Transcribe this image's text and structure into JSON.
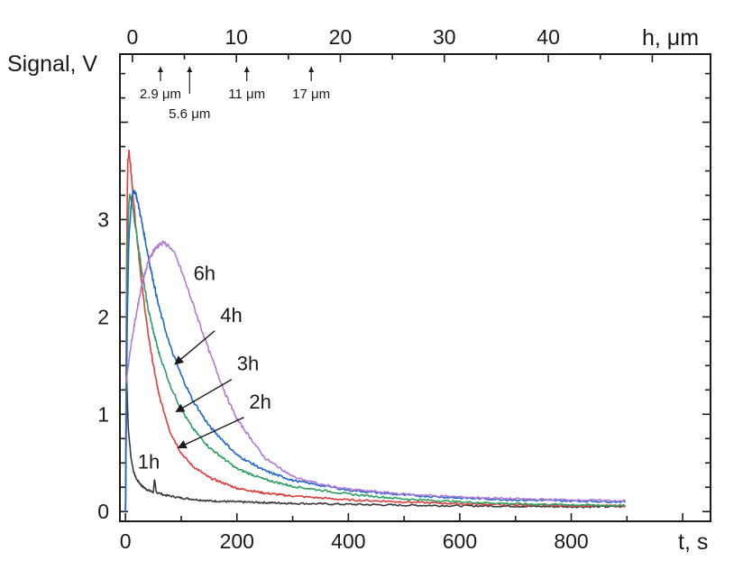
{
  "chart_data": {
    "type": "line",
    "x_axis": {
      "label": "t, s",
      "range": [
        -10,
        1050
      ],
      "ticks": [
        0,
        200,
        400,
        600,
        800
      ],
      "tick_labels": [
        "0",
        "200",
        "400",
        "600",
        "800"
      ],
      "minor_step": 100
    },
    "x2_axis": {
      "label": "h, μm",
      "range": [
        -1.2,
        55.6
      ],
      "ticks": [
        0,
        10,
        20,
        30,
        40
      ],
      "tick_labels": [
        "0",
        "10",
        "20",
        "30",
        "40"
      ],
      "minor_step": 5
    },
    "y_axis": {
      "label": "Signal, V",
      "range": [
        -0.1,
        4.7
      ],
      "ticks": [
        0,
        1,
        2,
        3
      ],
      "tick_labels": [
        "0",
        "1",
        "2",
        "3"
      ],
      "minor_step": 0.25
    },
    "depth_markers": [
      {
        "label": "2.9 μm",
        "h": 2.7,
        "tall": false
      },
      {
        "label": "5.6 μm",
        "h": 5.5,
        "tall": true
      },
      {
        "label": "11 μm",
        "h": 11.0,
        "tall": false
      },
      {
        "label": "17 μm",
        "h": 17.2,
        "tall": false
      }
    ],
    "series": [
      {
        "name": "1h",
        "color": "#3a3a3a",
        "x": [
          0,
          2,
          5,
          10,
          15,
          20,
          30,
          40,
          50,
          52,
          55,
          70,
          100,
          150,
          200,
          300,
          400,
          500,
          600,
          700,
          800,
          900
        ],
        "y": [
          0.0,
          1.4,
          0.85,
          0.55,
          0.4,
          0.33,
          0.26,
          0.22,
          0.2,
          0.33,
          0.2,
          0.17,
          0.14,
          0.11,
          0.1,
          0.085,
          0.075,
          0.065,
          0.06,
          0.055,
          0.05,
          0.05
        ]
      },
      {
        "name": "2h",
        "color": "#e03c3c",
        "x": [
          0,
          2,
          4,
          6,
          8,
          12,
          20,
          30,
          40,
          50,
          60,
          80,
          100,
          120,
          150,
          200,
          250,
          300,
          400,
          500,
          600,
          700,
          800,
          900
        ],
        "y": [
          0.0,
          2.6,
          3.6,
          3.7,
          3.62,
          3.35,
          2.85,
          2.3,
          1.85,
          1.5,
          1.2,
          0.82,
          0.6,
          0.47,
          0.35,
          0.24,
          0.19,
          0.16,
          0.12,
          0.1,
          0.08,
          0.07,
          0.06,
          0.06
        ]
      },
      {
        "name": "3h",
        "color": "#2e9e62",
        "x": [
          0,
          3,
          6,
          8,
          12,
          20,
          30,
          40,
          50,
          60,
          80,
          100,
          120,
          150,
          200,
          250,
          300,
          400,
          500,
          600,
          700,
          800,
          900
        ],
        "y": [
          0.0,
          2.6,
          3.15,
          3.25,
          3.15,
          2.85,
          2.45,
          2.1,
          1.85,
          1.63,
          1.3,
          1.05,
          0.86,
          0.66,
          0.44,
          0.33,
          0.26,
          0.18,
          0.13,
          0.1,
          0.08,
          0.07,
          0.06
        ]
      },
      {
        "name": "4h",
        "color": "#1f66cc",
        "x": [
          0,
          3,
          6,
          10,
          14,
          18,
          25,
          35,
          45,
          60,
          80,
          100,
          120,
          150,
          200,
          250,
          300,
          400,
          500,
          600,
          700,
          800,
          900
        ],
        "y": [
          0.0,
          1.9,
          2.8,
          3.15,
          3.3,
          3.28,
          3.1,
          2.8,
          2.5,
          2.1,
          1.7,
          1.4,
          1.15,
          0.88,
          0.58,
          0.42,
          0.32,
          0.22,
          0.17,
          0.14,
          0.12,
          0.11,
          0.1
        ]
      },
      {
        "name": "6h",
        "color": "#b07ad6",
        "x": [
          0,
          5,
          10,
          20,
          30,
          40,
          50,
          60,
          70,
          80,
          90,
          100,
          120,
          150,
          180,
          200,
          250,
          300,
          350,
          400,
          500,
          600,
          700,
          800,
          900
        ],
        "y": [
          1.3,
          1.5,
          1.72,
          2.05,
          2.35,
          2.55,
          2.68,
          2.74,
          2.76,
          2.72,
          2.62,
          2.48,
          2.15,
          1.65,
          1.2,
          0.95,
          0.55,
          0.36,
          0.28,
          0.23,
          0.18,
          0.15,
          0.13,
          0.12,
          0.11
        ]
      }
    ],
    "annotations": [
      {
        "text": "6h",
        "x": 122,
        "y": 2.38,
        "arrow": false
      },
      {
        "text": "4h",
        "x": 170,
        "y": 1.95,
        "arrow": true,
        "arrow_to": [
          90,
          1.52
        ]
      },
      {
        "text": "3h",
        "x": 200,
        "y": 1.45,
        "arrow": true,
        "arrow_to": [
          92,
          1.03
        ]
      },
      {
        "text": "2h",
        "x": 222,
        "y": 1.06,
        "arrow": true,
        "arrow_to": [
          96,
          0.66
        ]
      },
      {
        "text": "1h",
        "x": 22,
        "y": 0.44,
        "arrow": false
      }
    ]
  }
}
